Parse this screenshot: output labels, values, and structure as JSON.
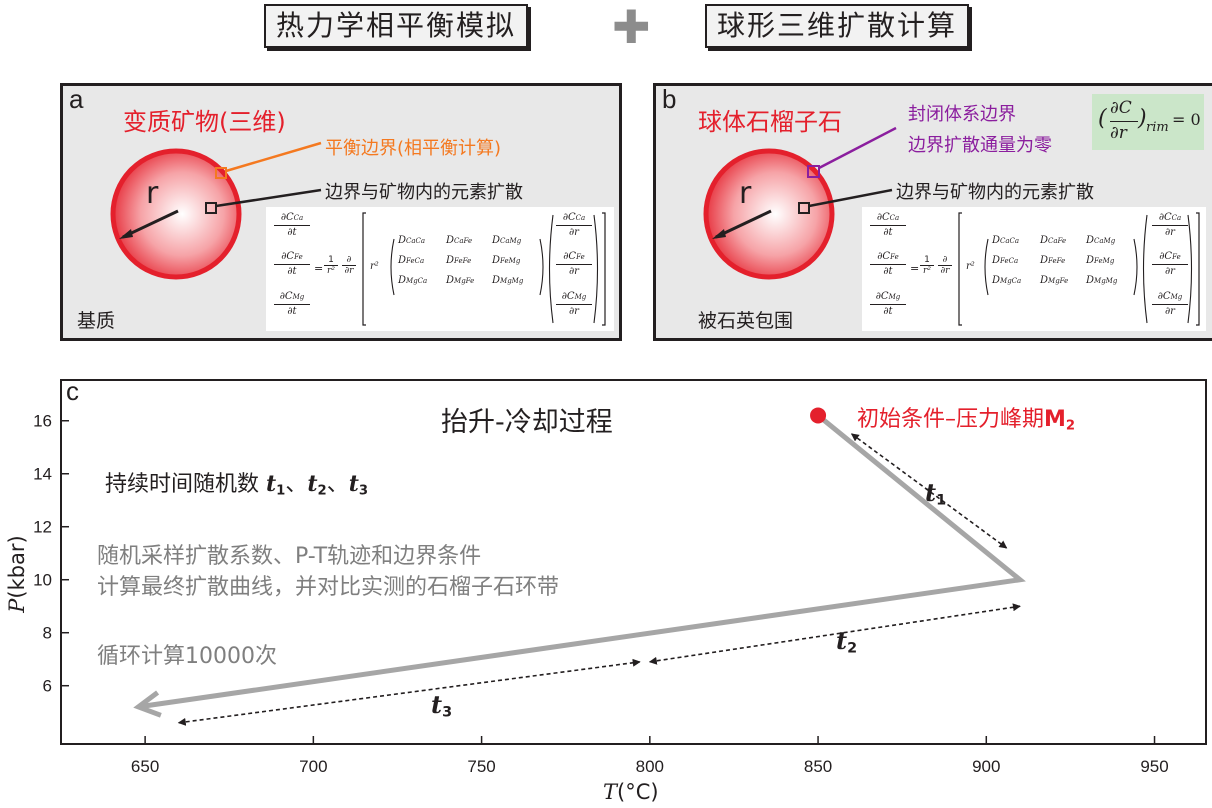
{
  "header": {
    "left_title": "热力学相平衡模拟",
    "plus_symbol": "✚",
    "right_title": "球形三维扩散计算"
  },
  "panel_a": {
    "label": "a",
    "title": "变质矿物(三维)",
    "radius_label": "r",
    "boundary_note": "平衡边界(相平衡计算)",
    "diffusion_note": "边界与矿物内的元素扩散",
    "matrix_label": "基质"
  },
  "panel_b": {
    "label": "b",
    "title": "球体石榴子石",
    "radius_label": "r",
    "closed_note_1": "封闭体系边界",
    "closed_note_2": "边界扩散通量为零",
    "diffusion_note": "边界与矿物内的元素扩散",
    "matrix_label": "被石英包围",
    "boundary_eq": {
      "numerator": "∂C",
      "denominator": "∂r",
      "subscript": "rim",
      "equals": "= 0"
    }
  },
  "equation": {
    "lhs_num": [
      "∂C",
      "∂C",
      "∂C"
    ],
    "lhs_sub": [
      "Ca",
      "Fe",
      "Mg"
    ],
    "den_t": "∂t",
    "den_r": "∂r",
    "equals": "=",
    "one": "1",
    "r2": "r²",
    "d": "∂",
    "matrix": [
      [
        "D",
        "D",
        "D"
      ],
      [
        "D",
        "D",
        "D"
      ],
      [
        "D",
        "D",
        "D"
      ]
    ],
    "matrix_sub": [
      [
        "CaCa",
        "CaFe",
        "CaMg"
      ],
      [
        "FeCa",
        "FeFe",
        "FeMg"
      ],
      [
        "MgCa",
        "MgFe",
        "MgMg"
      ]
    ]
  },
  "panel_c": {
    "label": "c",
    "process_title": "抬升-冷却过程",
    "initial_condition": "初始条件–压力峰期",
    "initial_condition_symbol": "M",
    "initial_condition_sub": "2",
    "durations_prefix": "持续时间随机数 ",
    "durations": [
      {
        "symbol": "t",
        "sub": "1",
        "sep": "、"
      },
      {
        "symbol": "t",
        "sub": "2",
        "sep": "、"
      },
      {
        "symbol": "t",
        "sub": "3",
        "sep": ""
      }
    ],
    "sampling_line_1": "随机采样扩散系数、P-T轨迹和边界条件",
    "sampling_line_2": "计算最终扩散曲线，并对比实测的石榴子石环带",
    "loop_note": "循环计算10000次",
    "segment_labels": [
      {
        "symbol": "t",
        "sub": "1"
      },
      {
        "symbol": "t",
        "sub": "2"
      },
      {
        "symbol": "t",
        "sub": "3"
      }
    ]
  },
  "chart_data": {
    "type": "line",
    "xlabel_symbol": "T",
    "xlabel_unit": "(°C)",
    "ylabel_symbol": "P",
    "ylabel_unit": "(kbar)",
    "xlim": [
      625,
      965
    ],
    "ylim": [
      3.8,
      17.5
    ],
    "xticks": [
      650,
      700,
      750,
      800,
      850,
      900,
      950
    ],
    "yticks": [
      6,
      8,
      10,
      12,
      14,
      16
    ],
    "grid": false,
    "peak_point": {
      "x": 850,
      "y": 16.2
    },
    "path": [
      {
        "x": 850,
        "y": 16.2
      },
      {
        "x": 910,
        "y": 10.0
      },
      {
        "x": 648,
        "y": 5.2
      }
    ],
    "duration_arrows": [
      {
        "from": {
          "x": 860,
          "y": 15.5
        },
        "to": {
          "x": 906,
          "y": 11.2
        }
      },
      {
        "from": {
          "x": 800,
          "y": 6.9
        },
        "to": {
          "x": 910,
          "y": 9.0
        }
      },
      {
        "from": {
          "x": 660,
          "y": 4.6
        },
        "to": {
          "x": 797,
          "y": 6.9
        }
      }
    ],
    "colors": {
      "path": "#a6a6a6",
      "peak": "#e4202c",
      "arrow": "#231f20"
    }
  }
}
